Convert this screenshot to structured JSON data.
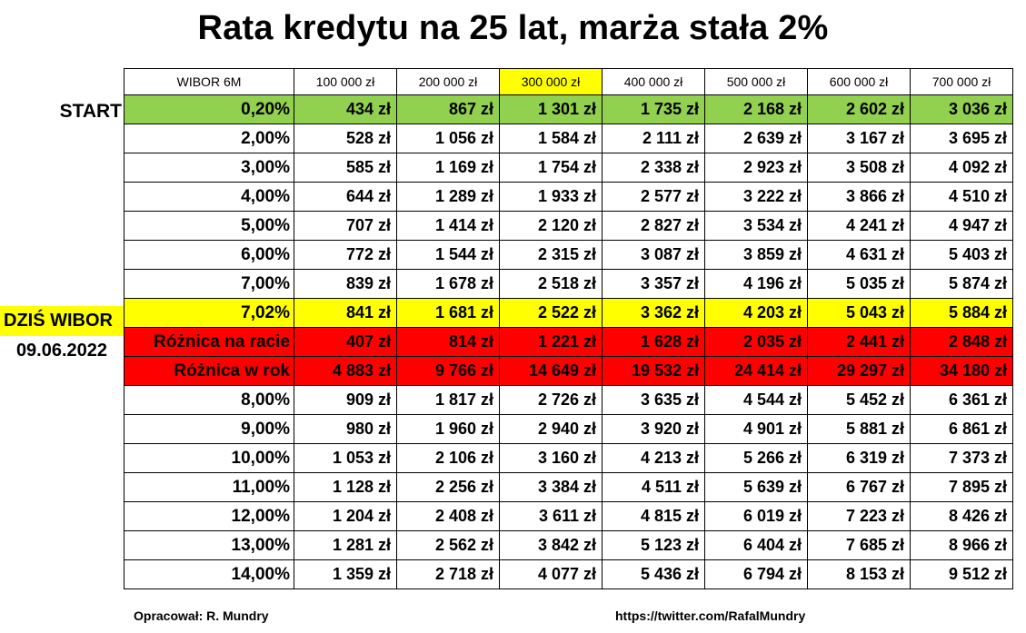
{
  "title": "Rata kredytu na 25 lat, marża stała 2%",
  "side_labels": {
    "start": "START",
    "dzis": "DZIŚ WIBOR",
    "date": "09.06.2022"
  },
  "footer": {
    "author": "Opracował: R. Mundry",
    "url": "https://twitter.com/RafalMundry"
  },
  "colors": {
    "green": "#92d050",
    "yellow": "#ffff00",
    "red": "#ff0000"
  },
  "chart_data": {
    "type": "table",
    "header": [
      "WIBOR 6M",
      "100 000 zł",
      "200 000 zł",
      "300 000 zł",
      "400 000 zł",
      "500 000 zł",
      "600 000 zł",
      "700 000 zł"
    ],
    "highlighted_column": "300 000 zł",
    "rows": [
      {
        "label": "0,20%",
        "values": [
          "434 zł",
          "867 zł",
          "1 301 zł",
          "1 735 zł",
          "2 168 zł",
          "2 602 zł",
          "3 036 zł"
        ],
        "style": "green"
      },
      {
        "label": "2,00%",
        "values": [
          "528 zł",
          "1 056 zł",
          "1 584 zł",
          "2 111 zł",
          "2 639 zł",
          "3 167 zł",
          "3 695 zł"
        ],
        "style": ""
      },
      {
        "label": "3,00%",
        "values": [
          "585 zł",
          "1 169 zł",
          "1 754 zł",
          "2 338 zł",
          "2 923 zł",
          "3 508 zł",
          "4 092 zł"
        ],
        "style": ""
      },
      {
        "label": "4,00%",
        "values": [
          "644 zł",
          "1 289 zł",
          "1 933 zł",
          "2 577 zł",
          "3 222 zł",
          "3 866 zł",
          "4 510 zł"
        ],
        "style": ""
      },
      {
        "label": "5,00%",
        "values": [
          "707 zł",
          "1 414 zł",
          "2 120 zł",
          "2 827 zł",
          "3 534 zł",
          "4 241 zł",
          "4 947 zł"
        ],
        "style": ""
      },
      {
        "label": "6,00%",
        "values": [
          "772 zł",
          "1 544 zł",
          "2 315 zł",
          "3 087 zł",
          "3 859 zł",
          "4 631 zł",
          "5 403 zł"
        ],
        "style": ""
      },
      {
        "label": "7,00%",
        "values": [
          "839 zł",
          "1 678 zł",
          "2 518 zł",
          "3 357 zł",
          "4 196 zł",
          "5 035 zł",
          "5 874 zł"
        ],
        "style": ""
      },
      {
        "label": "7,02%",
        "values": [
          "841 zł",
          "1 681 zł",
          "2 522 zł",
          "3 362 zł",
          "4 203 zł",
          "5 043 zł",
          "5 884 zł"
        ],
        "style": "yellow"
      },
      {
        "label": "Różnica na racie",
        "values": [
          "407 zł",
          "814 zł",
          "1 221 zł",
          "1 628 zł",
          "2 035 zł",
          "2 441 zł",
          "2 848 zł"
        ],
        "style": "red"
      },
      {
        "label": "Różnica w rok",
        "values": [
          "4 883 zł",
          "9 766 zł",
          "14 649 zł",
          "19 532 zł",
          "24 414 zł",
          "29 297 zł",
          "34 180 zł"
        ],
        "style": "red"
      },
      {
        "label": "8,00%",
        "values": [
          "909 zł",
          "1 817 zł",
          "2 726 zł",
          "3 635 zł",
          "4 544 zł",
          "5 452 zł",
          "6 361 zł"
        ],
        "style": ""
      },
      {
        "label": "9,00%",
        "values": [
          "980 zł",
          "1 960 zł",
          "2 940 zł",
          "3 920 zł",
          "4 901 zł",
          "5 881 zł",
          "6 861 zł"
        ],
        "style": ""
      },
      {
        "label": "10,00%",
        "values": [
          "1 053 zł",
          "2 106 zł",
          "3 160 zł",
          "4 213 zł",
          "5 266 zł",
          "6 319 zł",
          "7 373 zł"
        ],
        "style": ""
      },
      {
        "label": "11,00%",
        "values": [
          "1 128 zł",
          "2 256 zł",
          "3 384 zł",
          "4 511 zł",
          "5 639 zł",
          "6 767 zł",
          "7 895 zł"
        ],
        "style": ""
      },
      {
        "label": "12,00%",
        "values": [
          "1 204 zł",
          "2 408 zł",
          "3 611 zł",
          "4 815 zł",
          "6 019 zł",
          "7 223 zł",
          "8 426 zł"
        ],
        "style": ""
      },
      {
        "label": "13,00%",
        "values": [
          "1 281 zł",
          "2 562 zł",
          "3 842 zł",
          "5 123 zł",
          "6 404 zł",
          "7 685 zł",
          "8 966 zł"
        ],
        "style": ""
      },
      {
        "label": "14,00%",
        "values": [
          "1 359 zł",
          "2 718 zł",
          "4 077 zł",
          "5 436 zł",
          "6 794 zł",
          "8 153 zł",
          "9 512 zł"
        ],
        "style": ""
      }
    ]
  }
}
